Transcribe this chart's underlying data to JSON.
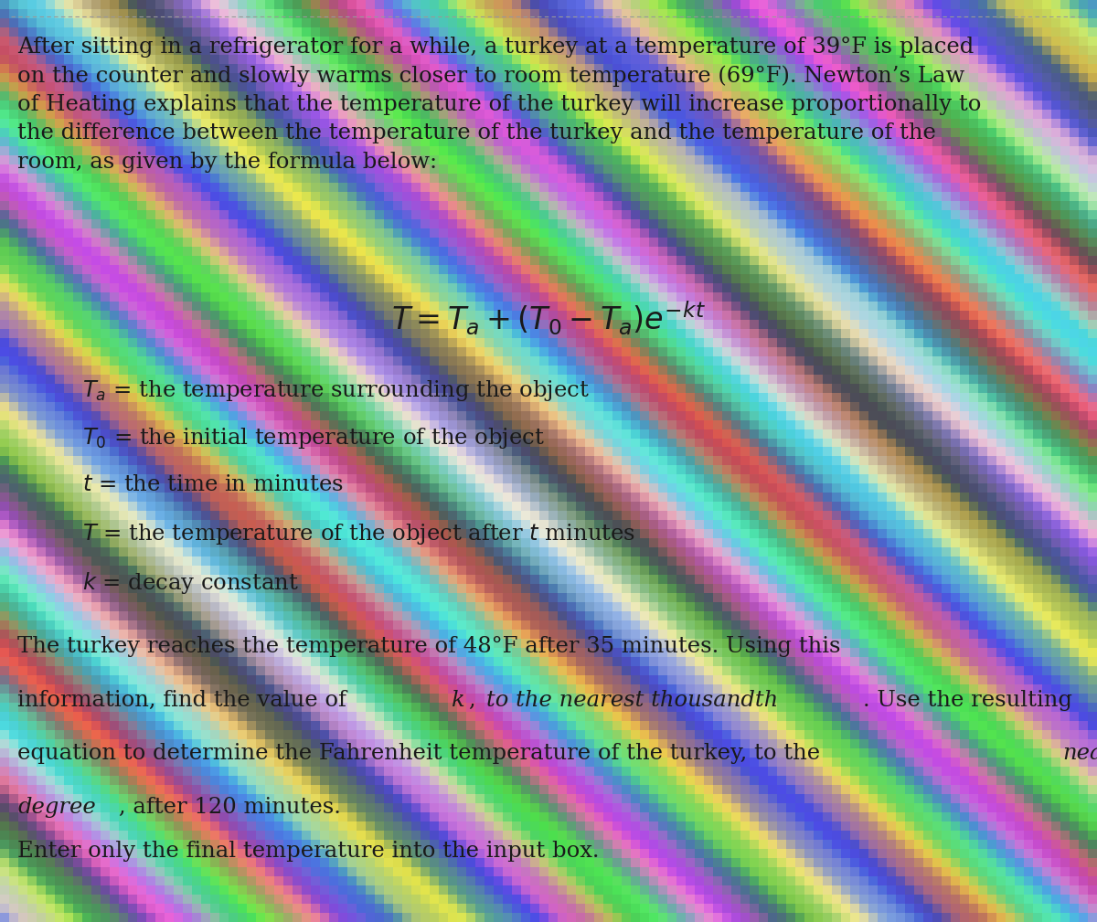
{
  "text_color": "#1a1a1a",
  "body_fontsize": 17.5,
  "formula_fontsize": 24,
  "var_fontsize": 17.5,
  "paragraph1": "After sitting in a refrigerator for a while, a turkey at a temperature of 39°F is placed\non the counter and slowly warms closer to room temperature (69°F). Newton’s Law\nof Heating explains that the temperature of the turkey will increase proportionally to\nthe difference between the temperature of the turkey and the temperature of the\nroom, as given by the formula below:",
  "var_lines": [
    "$T_a$ = the temperature surrounding the object",
    "$T_0$ = the initial temperature of the object",
    "$t$ = the time in minutes",
    "$T$ = the temperature of the object after $t$ minutes",
    "$k$ = decay constant"
  ],
  "p2_line1": "The turkey reaches the temperature of 48°F after 35 minutes. Using this",
  "p2_line2_normal1": "information, find the value of ",
  "p2_line2_italic1": "k",
  "p2_line2_normal2": ", ",
  "p2_line2_italic2": "to the nearest thousandth",
  "p2_line2_normal3": ". Use the resulting",
  "p2_line3_normal1": "equation to determine the Fahrenheit temperature of the turkey, to the ",
  "p2_line3_italic1": "nearest",
  "p2_line4_italic1": "degree",
  "p2_line4_normal1": ", after 120 minutes.",
  "paragraph3": "Enter only the final temperature into the input box.",
  "fig_width": 12.0,
  "fig_height": 10.09,
  "dpi": 100
}
